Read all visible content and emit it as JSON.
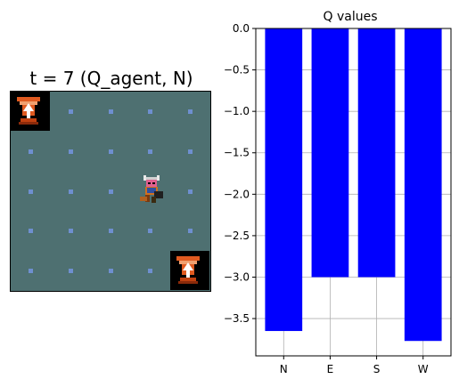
{
  "gridworld": {
    "title": "t = 7 (Q_agent, N)",
    "cells": 5,
    "agent_cell": {
      "col": 3,
      "row": 2
    },
    "goal_cells": [
      {
        "col": 0,
        "row": 0
      },
      {
        "col": 4,
        "row": 4
      }
    ],
    "colors": {
      "floor": "#4e7071",
      "dot": "#6e8fd0"
    }
  },
  "chart_data": {
    "type": "bar",
    "title": "Q values",
    "categories": [
      "N",
      "E",
      "S",
      "W"
    ],
    "values": [
      -3.65,
      -3.0,
      -3.0,
      -3.77
    ],
    "ylim": [
      -3.95,
      0.0
    ],
    "yticks": [
      "0.0",
      "−0.5",
      "−1.0",
      "−1.5",
      "−2.0",
      "−2.5",
      "−3.0",
      "−3.5"
    ],
    "ytick_values": [
      0.0,
      -0.5,
      -1.0,
      -1.5,
      -2.0,
      -2.5,
      -3.0,
      -3.5
    ],
    "grid": true,
    "color": "#0000ff"
  }
}
